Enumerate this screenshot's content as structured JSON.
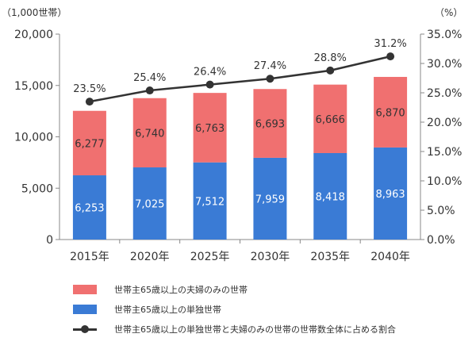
{
  "chart_data": {
    "type": "bar",
    "categories": [
      "2015年",
      "2020年",
      "2025年",
      "2030年",
      "2035年",
      "2040年"
    ],
    "left_axis": {
      "unit_label": "（1,000世帯）",
      "ylim": [
        0,
        20000
      ],
      "ticks": [
        "0",
        "5,000",
        "10,000",
        "15,000",
        "20,000"
      ],
      "tick_values": [
        0,
        5000,
        10000,
        15000,
        20000
      ]
    },
    "right_axis": {
      "unit_label": "（%）",
      "ylim": [
        0,
        35
      ],
      "ticks": [
        "0.0%",
        "5.0%",
        "10.0%",
        "15.0%",
        "20.0%",
        "25.0%",
        "30.0%",
        "35.0%"
      ],
      "tick_values": [
        0,
        5,
        10,
        15,
        20,
        25,
        30,
        35
      ]
    },
    "series": [
      {
        "name": "世帯主65歳以上の単独世帯",
        "kind": "stacked-bar",
        "axis": "left",
        "color": "#3a7bd5",
        "values": [
          6253,
          7025,
          7512,
          7959,
          8418,
          8963
        ],
        "labels": [
          "6,253",
          "7,025",
          "7,512",
          "7,959",
          "8,418",
          "8,963"
        ]
      },
      {
        "name": "世帯主65歳以上の夫婦のみの世帯",
        "kind": "stacked-bar",
        "axis": "left",
        "color": "#f07070",
        "values": [
          6277,
          6740,
          6763,
          6693,
          6666,
          6870
        ],
        "labels": [
          "6,277",
          "6,740",
          "6,763",
          "6,693",
          "6,666",
          "6,870"
        ]
      },
      {
        "name": "世帯主65歳以上の単独世帯と夫婦のみの世帯の世帯数全体に占める割合",
        "kind": "line",
        "axis": "right",
        "color": "#333333",
        "values": [
          23.5,
          25.4,
          26.4,
          27.4,
          28.8,
          31.2
        ],
        "labels": [
          "23.5%",
          "25.4%",
          "26.4%",
          "27.4%",
          "28.8%",
          "31.2%"
        ]
      }
    ],
    "grid": false
  },
  "legend": [
    {
      "label": "世帯主65歳以上の夫婦のみの世帯",
      "color": "#f07070"
    },
    {
      "label": "世帯主65歳以上の単独世帯",
      "color": "#3a7bd5"
    },
    {
      "label": "世帯主65歳以上の単独世帯と夫婦のみの世帯の世帯数全体に占める割合",
      "color": "#333333"
    }
  ]
}
